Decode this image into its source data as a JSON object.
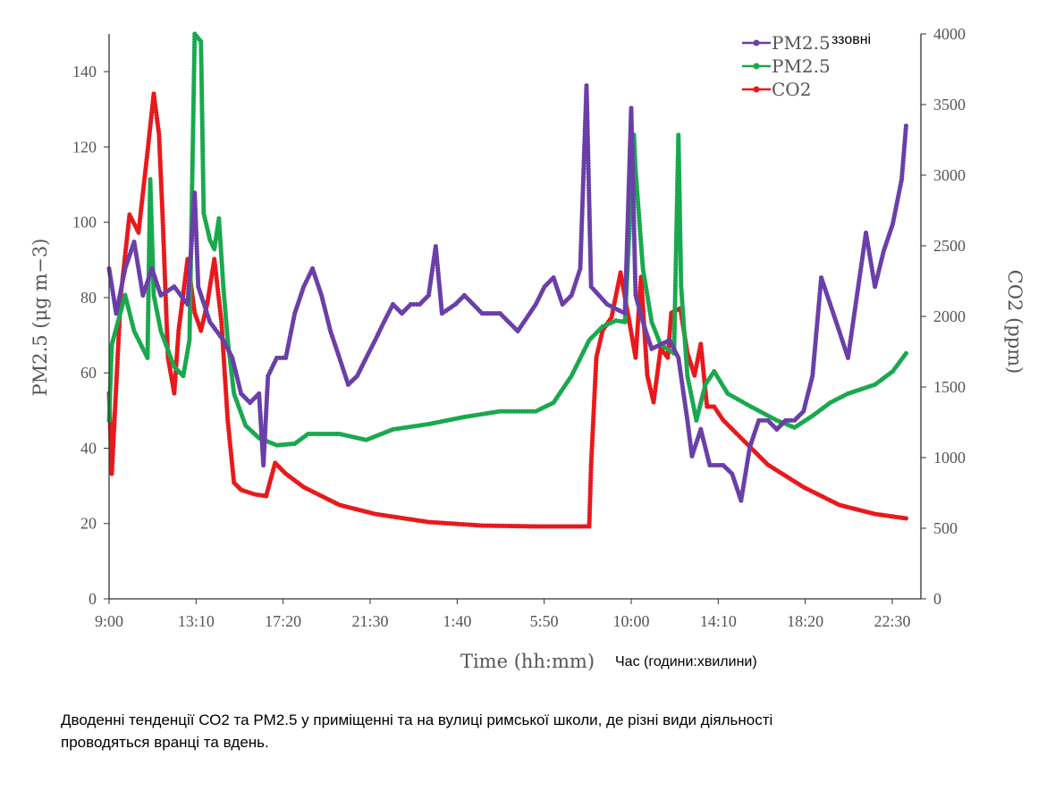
{
  "chart_data": {
    "type": "line",
    "title": "",
    "xlabel": "Time (hh:mm)",
    "xlabel_translation": "Час (години:хвилини)",
    "ylabel": "PM2.5 (μg m−3)",
    "ylabel_right": "CO2 (ppm)",
    "x_unit": "hours since 9:00 (day 1)",
    "xlim": [
      0,
      38.5
    ],
    "ylim": [
      0,
      150
    ],
    "ylim_right": [
      0,
      4000
    ],
    "x_ticks": [
      {
        "value": 0,
        "label": "9:00"
      },
      {
        "value": 4.1667,
        "label": "13:10"
      },
      {
        "value": 8.3333,
        "label": "17:20"
      },
      {
        "value": 12.5,
        "label": "21:30"
      },
      {
        "value": 16.6667,
        "label": "1:40"
      },
      {
        "value": 20.8333,
        "label": "5:50"
      },
      {
        "value": 25,
        "label": "10:00"
      },
      {
        "value": 29.1667,
        "label": "14:10"
      },
      {
        "value": 33.3333,
        "label": "18:20"
      },
      {
        "value": 37.5,
        "label": "22:30"
      }
    ],
    "y_ticks": [
      0,
      20,
      40,
      60,
      80,
      100,
      120,
      140
    ],
    "y_ticks_right": [
      0,
      500,
      1000,
      1500,
      2000,
      2500,
      3000,
      3500,
      4000
    ],
    "legend_position": "top-right",
    "grid": false,
    "series": [
      {
        "name": "PM2.5",
        "legend_note": "ззовні",
        "axis": "left",
        "color": "#6a3fa8",
        "points": [
          [
            0,
            87.7
          ],
          [
            0.34,
            75.8
          ],
          [
            0.77,
            87.7
          ],
          [
            1.2,
            94.8
          ],
          [
            1.62,
            80.6
          ],
          [
            2.05,
            87.7
          ],
          [
            2.48,
            80.6
          ],
          [
            3.12,
            82.9
          ],
          [
            3.76,
            78.2
          ],
          [
            4.1,
            107.8
          ],
          [
            4.27,
            82.9
          ],
          [
            4.83,
            73.5
          ],
          [
            5.47,
            68.7
          ],
          [
            5.9,
            64.0
          ],
          [
            6.32,
            54.5
          ],
          [
            6.75,
            52.1
          ],
          [
            7.18,
            54.5
          ],
          [
            7.39,
            35.5
          ],
          [
            7.61,
            59.2
          ],
          [
            8.03,
            64.0
          ],
          [
            8.46,
            64.0
          ],
          [
            8.89,
            75.8
          ],
          [
            9.32,
            82.9
          ],
          [
            9.74,
            87.7
          ],
          [
            10.17,
            80.6
          ],
          [
            10.6,
            71.1
          ],
          [
            11.03,
            64.0
          ],
          [
            11.45,
            56.9
          ],
          [
            11.88,
            59.2
          ],
          [
            12.31,
            64.0
          ],
          [
            12.74,
            68.7
          ],
          [
            13.16,
            73.5
          ],
          [
            13.59,
            78.2
          ],
          [
            14.02,
            75.8
          ],
          [
            14.44,
            78.2
          ],
          [
            14.87,
            78.2
          ],
          [
            15.3,
            80.6
          ],
          [
            15.64,
            93.6
          ],
          [
            15.94,
            75.8
          ],
          [
            16.58,
            78.2
          ],
          [
            17.01,
            80.6
          ],
          [
            17.86,
            75.8
          ],
          [
            18.72,
            75.8
          ],
          [
            19.57,
            71.1
          ],
          [
            20.43,
            78.2
          ],
          [
            20.85,
            82.9
          ],
          [
            21.28,
            85.3
          ],
          [
            21.71,
            78.2
          ],
          [
            22.14,
            80.6
          ],
          [
            22.56,
            87.7
          ],
          [
            22.86,
            136.3
          ],
          [
            23.08,
            82.9
          ],
          [
            23.85,
            78.2
          ],
          [
            24.7,
            75.8
          ],
          [
            25.0,
            130.3
          ],
          [
            25.21,
            80.6
          ],
          [
            25.56,
            73.5
          ],
          [
            25.98,
            66.4
          ],
          [
            26.84,
            68.7
          ],
          [
            27.26,
            64.0
          ],
          [
            27.69,
            47.4
          ],
          [
            27.91,
            37.9
          ],
          [
            28.33,
            45.0
          ],
          [
            28.76,
            35.5
          ],
          [
            29.4,
            35.5
          ],
          [
            29.83,
            33.2
          ],
          [
            30.26,
            26.1
          ],
          [
            30.68,
            40.3
          ],
          [
            31.11,
            47.4
          ],
          [
            31.54,
            47.4
          ],
          [
            31.97,
            45.0
          ],
          [
            32.39,
            47.4
          ],
          [
            32.82,
            47.4
          ],
          [
            33.25,
            49.8
          ],
          [
            33.68,
            59.2
          ],
          [
            34.1,
            85.3
          ],
          [
            34.53,
            78.2
          ],
          [
            34.96,
            71.1
          ],
          [
            35.38,
            64.0
          ],
          [
            35.81,
            80.6
          ],
          [
            36.24,
            97.2
          ],
          [
            36.67,
            82.9
          ],
          [
            37.09,
            92.4
          ],
          [
            37.52,
            99.5
          ],
          [
            37.95,
            111.4
          ],
          [
            38.16,
            125.6
          ]
        ]
      },
      {
        "name": "PM2.5",
        "axis": "left",
        "color": "#1aa84f",
        "points": [
          [
            0,
            47.4
          ],
          [
            0.13,
            67.5
          ],
          [
            0.77,
            80.6
          ],
          [
            1.2,
            71.1
          ],
          [
            1.84,
            64.0
          ],
          [
            1.97,
            111.4
          ],
          [
            2.14,
            80.6
          ],
          [
            2.48,
            71.1
          ],
          [
            3.12,
            61.6
          ],
          [
            3.55,
            59.2
          ],
          [
            3.85,
            68.7
          ],
          [
            4.1,
            150
          ],
          [
            4.4,
            148
          ],
          [
            4.53,
            102.4
          ],
          [
            4.83,
            95.3
          ],
          [
            5.04,
            92.9
          ],
          [
            5.26,
            101
          ],
          [
            5.47,
            82.9
          ],
          [
            5.68,
            68.7
          ],
          [
            5.98,
            54.5
          ],
          [
            6.54,
            46.0
          ],
          [
            7.18,
            42.7
          ],
          [
            8.03,
            40.8
          ],
          [
            8.89,
            41.2
          ],
          [
            9.53,
            43.8
          ],
          [
            11.03,
            43.8
          ],
          [
            12.31,
            42.2
          ],
          [
            13.59,
            45.0
          ],
          [
            15.3,
            46.4
          ],
          [
            17.01,
            48.3
          ],
          [
            18.72,
            49.8
          ],
          [
            20.43,
            49.8
          ],
          [
            21.28,
            52.1
          ],
          [
            22.14,
            59.2
          ],
          [
            22.99,
            68.7
          ],
          [
            23.63,
            72.3
          ],
          [
            24.27,
            73.9
          ],
          [
            24.7,
            73.5
          ],
          [
            25.13,
            123.2
          ],
          [
            25.21,
            113.7
          ],
          [
            25.56,
            87.7
          ],
          [
            25.98,
            73.5
          ],
          [
            26.41,
            67.5
          ],
          [
            27.05,
            65.2
          ],
          [
            27.26,
            123.2
          ],
          [
            27.39,
            82.9
          ],
          [
            27.69,
            59.2
          ],
          [
            28.12,
            47.4
          ],
          [
            28.55,
            56.9
          ],
          [
            28.97,
            60.4
          ],
          [
            29.62,
            54.5
          ],
          [
            30.68,
            51.2
          ],
          [
            31.97,
            47.4
          ],
          [
            32.82,
            45.5
          ],
          [
            33.68,
            48.6
          ],
          [
            34.53,
            52.1
          ],
          [
            35.38,
            54.5
          ],
          [
            36.67,
            56.9
          ],
          [
            37.52,
            60.4
          ],
          [
            38.16,
            65.2
          ]
        ]
      },
      {
        "name": "CO2",
        "axis": "right",
        "color": "#e8191c",
        "points": [
          [
            0,
            1456
          ],
          [
            0.13,
            886
          ],
          [
            0.56,
            2150
          ],
          [
            0.98,
            2720
          ],
          [
            1.41,
            2595
          ],
          [
            1.84,
            3165
          ],
          [
            2.14,
            3576
          ],
          [
            2.39,
            3290
          ],
          [
            2.56,
            2720
          ],
          [
            2.82,
            1709
          ],
          [
            3.12,
            1456
          ],
          [
            3.33,
            1900
          ],
          [
            3.76,
            2405
          ],
          [
            4.1,
            2025
          ],
          [
            4.4,
            1900
          ],
          [
            4.7,
            2090
          ],
          [
            5.04,
            2405
          ],
          [
            5.38,
            1962
          ],
          [
            5.68,
            1266
          ],
          [
            5.98,
            823
          ],
          [
            6.32,
            772
          ],
          [
            6.97,
            740
          ],
          [
            7.52,
            728
          ],
          [
            7.95,
            962
          ],
          [
            8.46,
            886
          ],
          [
            9.32,
            791
          ],
          [
            11.03,
            665
          ],
          [
            12.74,
            601
          ],
          [
            15.3,
            544
          ],
          [
            17.86,
            519
          ],
          [
            20.43,
            513
          ],
          [
            22.99,
            513
          ],
          [
            23.08,
            950
          ],
          [
            23.33,
            1709
          ],
          [
            23.63,
            1900
          ],
          [
            24.06,
            1994
          ],
          [
            24.49,
            2310
          ],
          [
            24.91,
            1962
          ],
          [
            25.21,
            1709
          ],
          [
            25.47,
            2279
          ],
          [
            25.77,
            1582
          ],
          [
            26.07,
            1393
          ],
          [
            26.41,
            1772
          ],
          [
            26.75,
            1709
          ],
          [
            26.92,
            2025
          ],
          [
            27.35,
            2057
          ],
          [
            27.69,
            1741
          ],
          [
            28.03,
            1582
          ],
          [
            28.33,
            1804
          ],
          [
            28.63,
            1361
          ],
          [
            28.97,
            1361
          ],
          [
            29.4,
            1266
          ],
          [
            30.26,
            1139
          ],
          [
            31.54,
            950
          ],
          [
            33.25,
            791
          ],
          [
            34.96,
            665
          ],
          [
            36.67,
            601
          ],
          [
            38.16,
            570
          ]
        ]
      }
    ]
  },
  "caption": {
    "line1": "Дводенні тенденції СО2 та PM2.5 у приміщенні та на вулиці римської школи, де різні види діяльності",
    "line2": "проводяться вранці та вдень."
  }
}
